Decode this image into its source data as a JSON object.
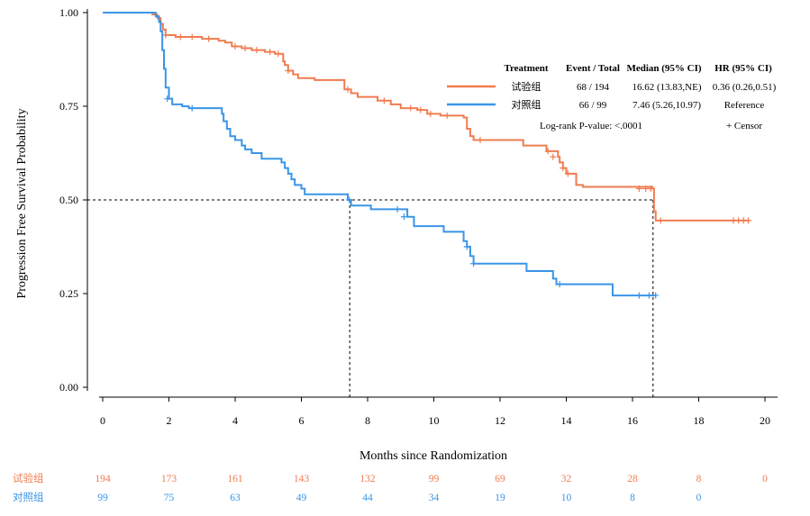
{
  "chart_data": {
    "type": "line",
    "subtype": "kaplan-meier",
    "xlabel": "Months since Randomization",
    "ylabel": "Progression Free Survival Probability",
    "xlim": [
      0,
      20
    ],
    "ylim": [
      0,
      1
    ],
    "xticks": [
      0,
      2,
      4,
      6,
      8,
      10,
      12,
      14,
      16,
      18,
      20
    ],
    "yticks": [
      0,
      0.25,
      0.5,
      0.75,
      1
    ],
    "xtick_labels": [
      "0",
      "2",
      "4",
      "6",
      "8",
      "10",
      "12",
      "14",
      "16",
      "18",
      "20"
    ],
    "ytick_labels": [
      "0.00",
      "0.25",
      "0.50",
      "0.75",
      "1.00"
    ],
    "median_reference": {
      "y": 0.5,
      "x_values": [
        7.46,
        16.62
      ]
    },
    "series": [
      {
        "name": "试验组",
        "color": "#f07c50",
        "steps": [
          [
            0,
            1.0
          ],
          [
            1.5,
            0.995
          ],
          [
            1.65,
            0.985
          ],
          [
            1.75,
            0.97
          ],
          [
            1.82,
            0.955
          ],
          [
            1.9,
            0.94
          ],
          [
            2.2,
            0.935
          ],
          [
            3.0,
            0.93
          ],
          [
            3.5,
            0.925
          ],
          [
            3.7,
            0.92
          ],
          [
            3.9,
            0.91
          ],
          [
            4.2,
            0.905
          ],
          [
            4.5,
            0.9
          ],
          [
            4.9,
            0.895
          ],
          [
            5.2,
            0.89
          ],
          [
            5.45,
            0.87
          ],
          [
            5.5,
            0.86
          ],
          [
            5.6,
            0.845
          ],
          [
            5.75,
            0.835
          ],
          [
            5.9,
            0.825
          ],
          [
            6.4,
            0.82
          ],
          [
            7.3,
            0.795
          ],
          [
            7.5,
            0.785
          ],
          [
            7.7,
            0.775
          ],
          [
            8.3,
            0.765
          ],
          [
            8.7,
            0.755
          ],
          [
            9.0,
            0.745
          ],
          [
            9.5,
            0.74
          ],
          [
            9.8,
            0.73
          ],
          [
            10.2,
            0.725
          ],
          [
            10.9,
            0.72
          ],
          [
            11.0,
            0.69
          ],
          [
            11.1,
            0.67
          ],
          [
            11.2,
            0.66
          ],
          [
            12.7,
            0.645
          ],
          [
            13.4,
            0.63
          ],
          [
            13.75,
            0.615
          ],
          [
            13.8,
            0.6
          ],
          [
            13.9,
            0.585
          ],
          [
            14.0,
            0.57
          ],
          [
            14.3,
            0.54
          ],
          [
            14.5,
            0.535
          ],
          [
            16.6,
            0.53
          ],
          [
            16.65,
            0.47
          ],
          [
            16.7,
            0.445
          ],
          [
            19.5,
            0.445
          ]
        ],
        "censors": [
          [
            1.9,
            0.94
          ],
          [
            2.35,
            0.935
          ],
          [
            2.7,
            0.935
          ],
          [
            3.2,
            0.93
          ],
          [
            4.0,
            0.91
          ],
          [
            4.3,
            0.905
          ],
          [
            4.65,
            0.9
          ],
          [
            5.05,
            0.895
          ],
          [
            5.3,
            0.89
          ],
          [
            5.6,
            0.845
          ],
          [
            7.4,
            0.795
          ],
          [
            8.5,
            0.765
          ],
          [
            9.3,
            0.745
          ],
          [
            9.6,
            0.74
          ],
          [
            9.9,
            0.73
          ],
          [
            10.4,
            0.725
          ],
          [
            11.4,
            0.66
          ],
          [
            13.45,
            0.63
          ],
          [
            13.6,
            0.615
          ],
          [
            13.9,
            0.585
          ],
          [
            14.05,
            0.57
          ],
          [
            16.2,
            0.53
          ],
          [
            16.4,
            0.53
          ],
          [
            16.55,
            0.53
          ],
          [
            16.85,
            0.445
          ],
          [
            19.05,
            0.445
          ],
          [
            19.2,
            0.445
          ],
          [
            19.35,
            0.445
          ],
          [
            19.5,
            0.445
          ]
        ],
        "risk": [
          "194",
          "173",
          "161",
          "143",
          "132",
          "99",
          "69",
          "32",
          "28",
          "8",
          "0"
        ]
      },
      {
        "name": "对照组",
        "color": "#3a95e6",
        "steps": [
          [
            0,
            1.0
          ],
          [
            1.5,
            1.0
          ],
          [
            1.6,
            0.99
          ],
          [
            1.7,
            0.975
          ],
          [
            1.75,
            0.95
          ],
          [
            1.8,
            0.9
          ],
          [
            1.85,
            0.85
          ],
          [
            1.9,
            0.8
          ],
          [
            2.0,
            0.77
          ],
          [
            2.1,
            0.755
          ],
          [
            2.4,
            0.75
          ],
          [
            2.6,
            0.745
          ],
          [
            3.6,
            0.73
          ],
          [
            3.65,
            0.71
          ],
          [
            3.75,
            0.69
          ],
          [
            3.85,
            0.67
          ],
          [
            4.0,
            0.66
          ],
          [
            4.2,
            0.645
          ],
          [
            4.3,
            0.635
          ],
          [
            4.5,
            0.625
          ],
          [
            4.8,
            0.61
          ],
          [
            5.4,
            0.6
          ],
          [
            5.5,
            0.585
          ],
          [
            5.6,
            0.57
          ],
          [
            5.7,
            0.555
          ],
          [
            5.8,
            0.54
          ],
          [
            6.0,
            0.53
          ],
          [
            6.1,
            0.515
          ],
          [
            7.4,
            0.5
          ],
          [
            7.5,
            0.485
          ],
          [
            8.1,
            0.475
          ],
          [
            9.2,
            0.455
          ],
          [
            9.4,
            0.43
          ],
          [
            10.3,
            0.415
          ],
          [
            10.9,
            0.39
          ],
          [
            11.0,
            0.375
          ],
          [
            11.1,
            0.35
          ],
          [
            11.2,
            0.33
          ],
          [
            12.8,
            0.31
          ],
          [
            13.6,
            0.29
          ],
          [
            13.7,
            0.275
          ],
          [
            15.4,
            0.245
          ],
          [
            16.7,
            0.245
          ]
        ],
        "censors": [
          [
            1.95,
            0.77
          ],
          [
            2.7,
            0.745
          ],
          [
            7.45,
            0.5
          ],
          [
            8.9,
            0.475
          ],
          [
            9.1,
            0.455
          ],
          [
            11.0,
            0.375
          ],
          [
            11.2,
            0.33
          ],
          [
            13.8,
            0.275
          ],
          [
            16.2,
            0.245
          ],
          [
            16.5,
            0.245
          ],
          [
            16.7,
            0.245
          ]
        ],
        "risk": [
          "99",
          "75",
          "63",
          "49",
          "44",
          "34",
          "19",
          "10",
          "8",
          "0"
        ]
      }
    ],
    "legend": {
      "headers": [
        "Treatment",
        "Event / Total",
        "Median (95% CI)",
        "HR (95% CI)"
      ],
      "rows": [
        {
          "label": "试验组",
          "event": "68 / 194",
          "median": "16.62 (13.83,NE)",
          "hr": "0.36 (0.26,0.51)"
        },
        {
          "label": "对照组",
          "event": "66 / 99",
          "median": "7.46 (5.26,10.97)",
          "hr": "Reference"
        }
      ],
      "pvalue": "Log-rank P-value: <.0001",
      "censor_label": "+ Censor"
    },
    "risk_table": {
      "labels": [
        "试验组",
        "对照组"
      ]
    }
  }
}
